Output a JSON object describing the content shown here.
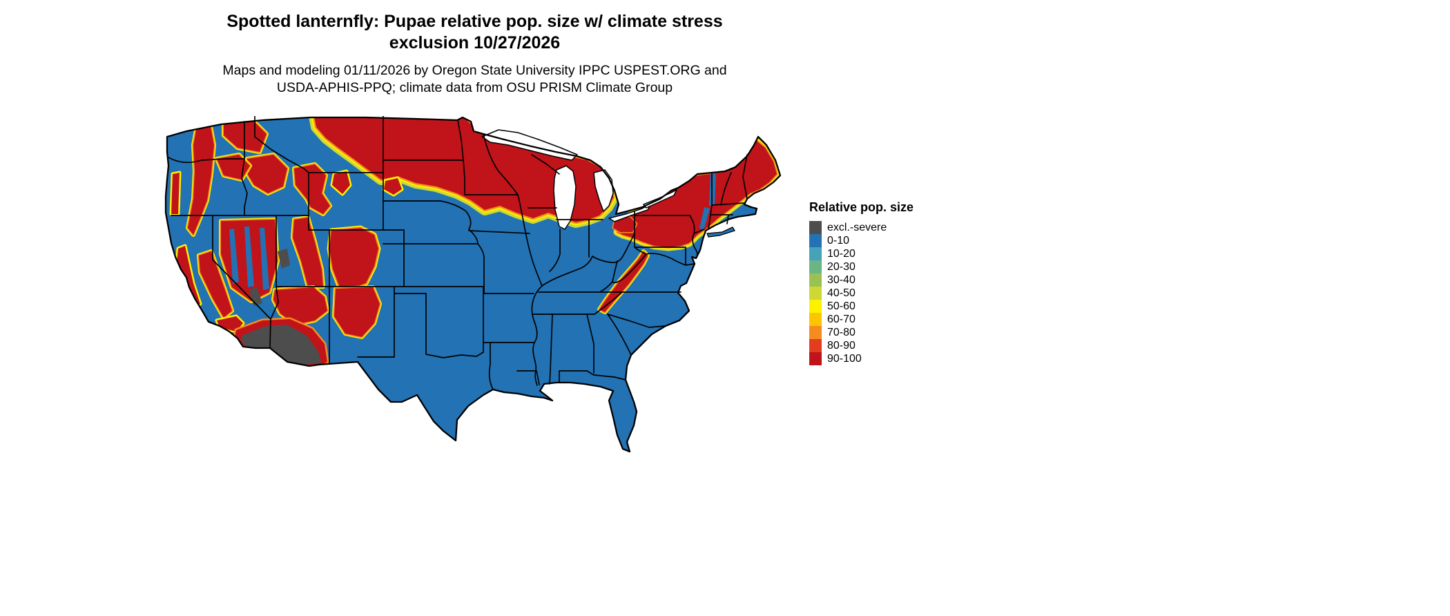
{
  "title": "Spotted lanternfly: Pupae relative pop. size w/ climate stress exclusion 10/27/2026",
  "subtitle": "Maps and modeling 01/11/2026 by Oregon State University IPPC USPEST.ORG and USDA-APHIS-PPQ; climate data from OSU PRISM Climate Group",
  "legend": {
    "title": "Relative pop. size",
    "items": [
      {
        "label": "excl.-severe",
        "color": "#4d4d4d"
      },
      {
        "label": "0-10",
        "color": "#2272b4"
      },
      {
        "label": "10-20",
        "color": "#45a2b8"
      },
      {
        "label": "20-30",
        "color": "#6ab487"
      },
      {
        "label": "30-40",
        "color": "#9cc153"
      },
      {
        "label": "40-50",
        "color": "#cdd836"
      },
      {
        "label": "50-60",
        "color": "#fdf100"
      },
      {
        "label": "60-70",
        "color": "#fdc500"
      },
      {
        "label": "70-80",
        "color": "#f68c1f"
      },
      {
        "label": "80-90",
        "color": "#e03e1e"
      },
      {
        "label": "90-100",
        "color": "#c0141a"
      }
    ]
  },
  "map": {
    "region": "Continental United States",
    "kind": "raster choropleth of relative population size",
    "dominant_low_class": "0-10",
    "high_classes_regions": "Northern Plains, Upper Midwest, Rocky Mountains, Sierra Nevada, Cascades, Great Basin, Northeast/New England, Appalachian ridge",
    "excluded_severe_region": "Sonoran Desert (southwestern Arizona and southeastern California)"
  }
}
